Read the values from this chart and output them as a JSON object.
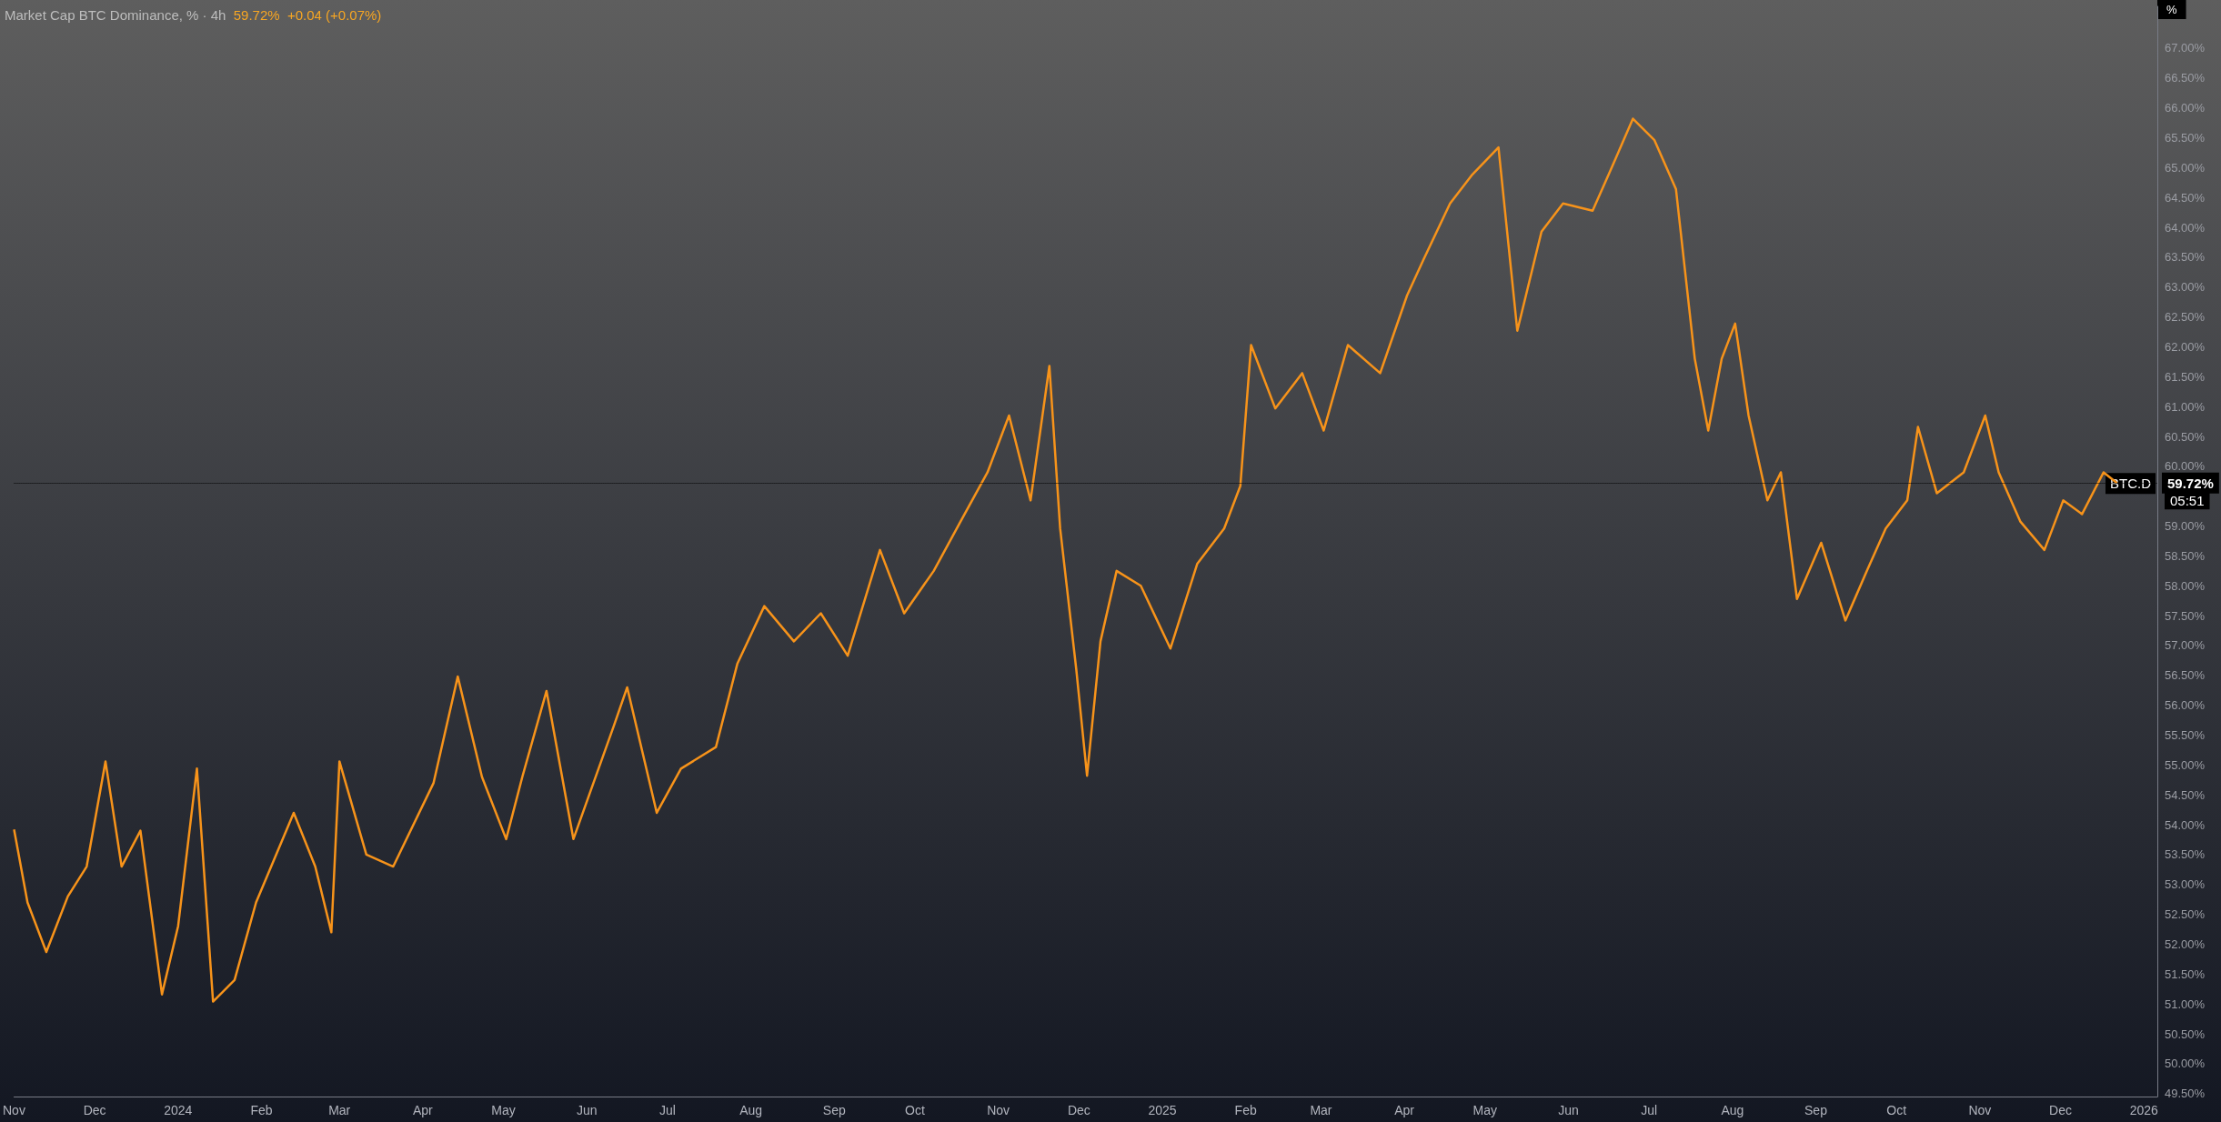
{
  "chart_data": {
    "type": "line",
    "title": "Market Cap BTC Dominance, % · 4h",
    "ylabel": "%",
    "annotations": [
      "59.72%  +0.04 (+0.07%)",
      "BTC.D",
      "05:51"
    ],
    "x": [
      "2023-11-01",
      "2023-11-06",
      "2023-11-13",
      "2023-11-21",
      "2023-11-28",
      "2023-12-05",
      "2023-12-11",
      "2023-12-18",
      "2023-12-26",
      "2024-01-01",
      "2024-01-08",
      "2024-01-14",
      "2024-01-22",
      "2024-01-30",
      "2024-02-13",
      "2024-02-21",
      "2024-02-27",
      "2024-03-01",
      "2024-03-11",
      "2024-03-21",
      "2024-04-05",
      "2024-04-14",
      "2024-04-23",
      "2024-05-02",
      "2024-05-08",
      "2024-05-17",
      "2024-05-27",
      "2024-06-11",
      "2024-06-16",
      "2024-06-27",
      "2024-07-06",
      "2024-07-19",
      "2024-07-27",
      "2024-08-06",
      "2024-08-17",
      "2024-08-27",
      "2024-09-06",
      "2024-09-18",
      "2024-09-27",
      "2024-10-08",
      "2024-10-18",
      "2024-10-28",
      "2024-11-05",
      "2024-11-13",
      "2024-11-20",
      "2024-11-24",
      "2024-11-30",
      "2024-12-04",
      "2024-12-09",
      "2024-12-15",
      "2024-12-24",
      "2025-01-04",
      "2025-01-14",
      "2025-01-24",
      "2025-01-30",
      "2025-02-03",
      "2025-02-12",
      "2025-02-22",
      "2025-03-02",
      "2025-03-11",
      "2025-03-23",
      "2025-04-02",
      "2025-04-08",
      "2025-04-18",
      "2025-04-26",
      "2025-05-06",
      "2025-05-13",
      "2025-05-22",
      "2025-05-30",
      "2025-06-10",
      "2025-06-17",
      "2025-06-25",
      "2025-07-03",
      "2025-07-11",
      "2025-07-18",
      "2025-07-23",
      "2025-07-28",
      "2025-08-02",
      "2025-08-07",
      "2025-08-14",
      "2025-08-19",
      "2025-08-25",
      "2025-09-03",
      "2025-09-12",
      "2025-09-20",
      "2025-09-27",
      "2025-10-05",
      "2025-10-09",
      "2025-10-16",
      "2025-10-26",
      "2025-11-03",
      "2025-11-08",
      "2025-11-16",
      "2025-11-25",
      "2025-12-02",
      "2025-12-09",
      "2025-12-17",
      "2025-12-22"
    ],
    "series": [
      {
        "color": "#f7931a",
        "values": [
          53.92,
          52.7,
          51.87,
          52.8,
          53.3,
          55.06,
          53.3,
          53.9,
          51.16,
          52.3,
          54.94,
          51.04,
          51.4,
          52.7,
          54.2,
          53.3,
          52.2,
          55.06,
          53.5,
          53.3,
          54.7,
          56.48,
          54.8,
          53.76,
          54.8,
          56.24,
          53.76,
          55.65,
          56.3,
          54.2,
          54.94,
          55.3,
          56.7,
          57.66,
          57.07,
          57.54,
          56.83,
          58.6,
          57.54,
          58.25,
          59.08,
          59.9,
          60.85,
          59.43,
          61.68,
          58.96,
          56.6,
          54.82,
          57.07,
          58.25,
          58.0,
          56.95,
          58.37,
          58.96,
          59.67,
          62.03,
          60.97,
          61.56,
          60.6,
          62.03,
          61.56,
          62.86,
          63.45,
          64.4,
          64.87,
          65.34,
          62.27,
          63.93,
          64.4,
          64.28,
          64.99,
          65.82,
          65.46,
          64.64,
          61.8,
          60.6,
          61.8,
          62.39,
          60.85,
          59.43,
          59.9,
          57.78,
          58.72,
          57.42,
          58.25,
          58.96,
          59.43,
          60.66,
          59.55,
          59.9,
          60.85,
          59.9,
          59.08,
          58.6,
          59.43,
          59.2,
          59.9,
          59.72
        ]
      }
    ],
    "xlim": [
      "2023-11-01",
      "2026-01-06"
    ],
    "xticks": [
      {
        "value": "2023-11-01",
        "label": "Nov"
      },
      {
        "value": "2023-12-01",
        "label": "Dec"
      },
      {
        "value": "2024-01-01",
        "label": "2024"
      },
      {
        "value": "2024-02-01",
        "label": "Feb"
      },
      {
        "value": "2024-03-01",
        "label": "Mar"
      },
      {
        "value": "2024-04-01",
        "label": "Apr"
      },
      {
        "value": "2024-05-01",
        "label": "May"
      },
      {
        "value": "2024-06-01",
        "label": "Jun"
      },
      {
        "value": "2024-07-01",
        "label": "Jul"
      },
      {
        "value": "2024-08-01",
        "label": "Aug"
      },
      {
        "value": "2024-09-01",
        "label": "Sep"
      },
      {
        "value": "2024-10-01",
        "label": "Oct"
      },
      {
        "value": "2024-11-01",
        "label": "Nov"
      },
      {
        "value": "2024-12-01",
        "label": "Dec"
      },
      {
        "value": "2025-01-01",
        "label": "2025"
      },
      {
        "value": "2025-02-01",
        "label": "Feb"
      },
      {
        "value": "2025-03-01",
        "label": "Mar"
      },
      {
        "value": "2025-04-01",
        "label": "Apr"
      },
      {
        "value": "2025-05-01",
        "label": "May"
      },
      {
        "value": "2025-06-01",
        "label": "Jun"
      },
      {
        "value": "2025-07-01",
        "label": "Jul"
      },
      {
        "value": "2025-08-01",
        "label": "Aug"
      },
      {
        "value": "2025-09-01",
        "label": "Sep"
      },
      {
        "value": "2025-10-01",
        "label": "Oct"
      },
      {
        "value": "2025-11-01",
        "label": "Nov"
      },
      {
        "value": "2025-12-01",
        "label": "Dec"
      },
      {
        "value": "2026-01-01",
        "label": "2026"
      }
    ],
    "ylim": [
      49.45,
      67.7
    ],
    "yticks": [
      {
        "value": 49.5,
        "label": "49.50%"
      },
      {
        "value": 50,
        "label": "50.00%"
      },
      {
        "value": 50.5,
        "label": "50.50%"
      },
      {
        "value": 51,
        "label": "51.00%"
      },
      {
        "value": 51.5,
        "label": "51.50%"
      },
      {
        "value": 52,
        "label": "52.00%"
      },
      {
        "value": 52.5,
        "label": "52.50%"
      },
      {
        "value": 53,
        "label": "53.00%"
      },
      {
        "value": 53.5,
        "label": "53.50%"
      },
      {
        "value": 54,
        "label": "54.00%"
      },
      {
        "value": 54.5,
        "label": "54.50%"
      },
      {
        "value": 55,
        "label": "55.00%"
      },
      {
        "value": 55.5,
        "label": "55.50%"
      },
      {
        "value": 56,
        "label": "56.00%"
      },
      {
        "value": 56.5,
        "label": "56.50%"
      },
      {
        "value": 57,
        "label": "57.00%"
      },
      {
        "value": 57.5,
        "label": "57.50%"
      },
      {
        "value": 58,
        "label": "58.00%"
      },
      {
        "value": 58.5,
        "label": "58.50%"
      },
      {
        "value": 59,
        "label": "59.00%"
      },
      {
        "value": 60,
        "label": "60.00%"
      },
      {
        "value": 60.5,
        "label": "60.50%"
      },
      {
        "value": 61,
        "label": "61.00%"
      },
      {
        "value": 61.5,
        "label": "61.50%"
      },
      {
        "value": 62,
        "label": "62.00%"
      },
      {
        "value": 62.5,
        "label": "62.50%"
      },
      {
        "value": 63,
        "label": "63.00%"
      },
      {
        "value": 63.5,
        "label": "63.50%"
      },
      {
        "value": 64,
        "label": "64.00%"
      },
      {
        "value": 64.5,
        "label": "64.50%"
      },
      {
        "value": 65,
        "label": "65.00%"
      },
      {
        "value": 65.5,
        "label": "65.50%"
      },
      {
        "value": 66,
        "label": "66.00%"
      },
      {
        "value": 66.5,
        "label": "66.50%"
      },
      {
        "value": 67,
        "label": "67.00%"
      }
    ],
    "ref_lines": [
      {
        "axis": "y",
        "value": 59.72,
        "label": "59.72%",
        "line_style": "dotted"
      }
    ],
    "grid": false,
    "marker": "none",
    "line_style": "solid"
  }
}
